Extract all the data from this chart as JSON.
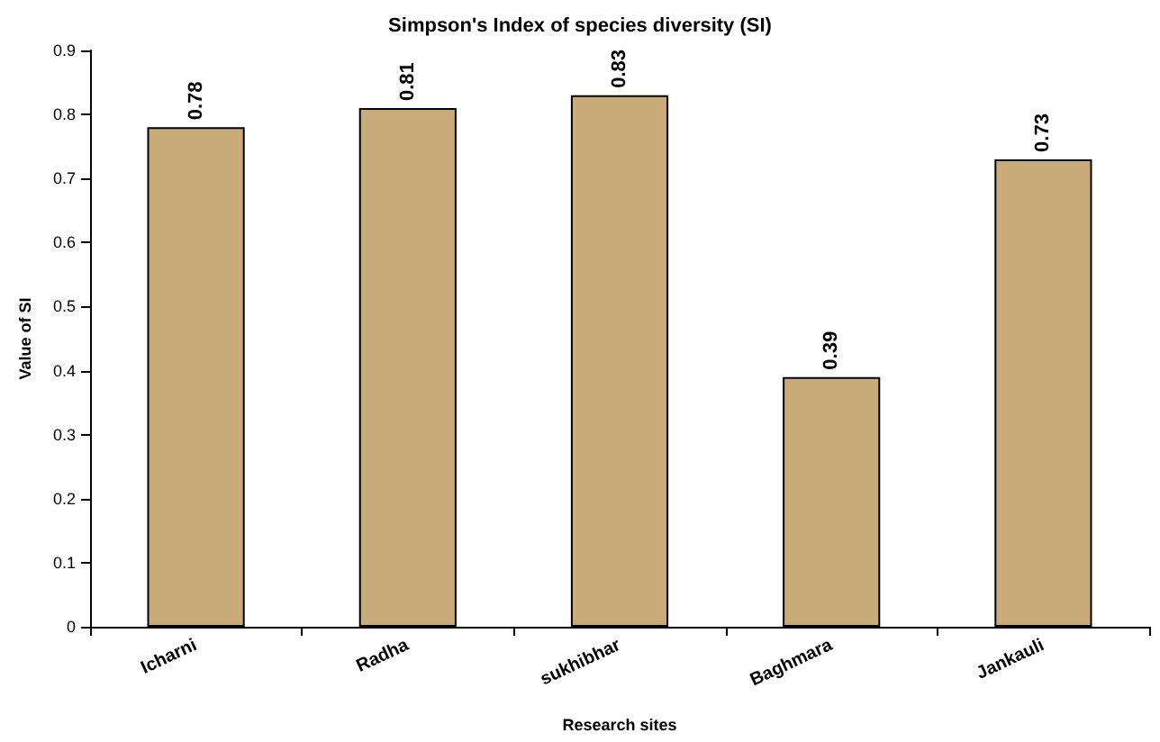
{
  "chart_data": {
    "type": "bar",
    "title": "Simpson's Index of species diversity (SI)",
    "xlabel": "Research sites",
    "ylabel": "Value of SI",
    "categories": [
      "Icharni",
      "Radha",
      "sukhibhar",
      "Baghmara",
      "Jankauli"
    ],
    "values": [
      0.78,
      0.81,
      0.83,
      0.39,
      0.73
    ],
    "color": "#c9ab7a",
    "ylim": [
      0,
      0.9
    ],
    "yticks": [
      0,
      0.1,
      0.2,
      0.3,
      0.4,
      0.5,
      0.6,
      0.7,
      0.8,
      0.9
    ],
    "grid": false,
    "data_labels": true
  }
}
